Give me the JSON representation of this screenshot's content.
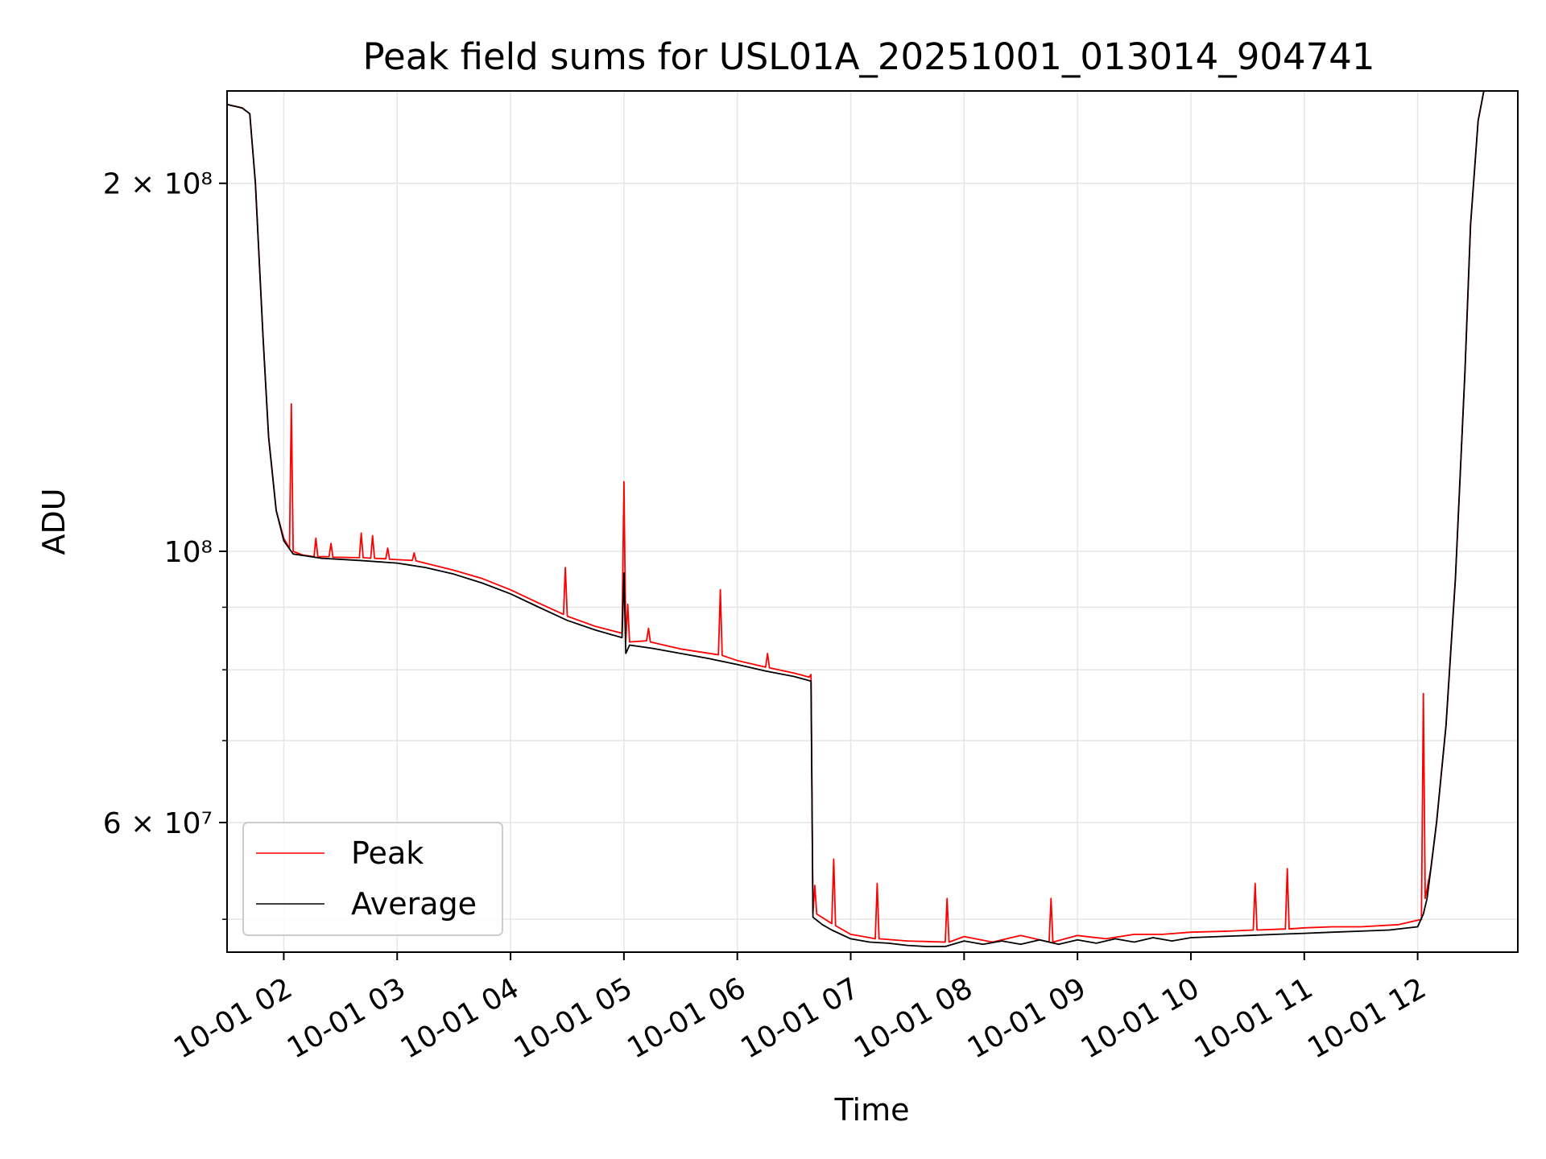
{
  "chart_data": {
    "type": "line",
    "title": "Peak field sums for USL01A_20251001_013014_904741",
    "xlabel": "Time",
    "ylabel": "ADU",
    "yscale": "log",
    "xlim": [
      "2025-10-01 01:30",
      "2025-10-01 12:53"
    ],
    "ylim": [
      47000000,
      238000000
    ],
    "grid": true,
    "legend": {
      "placement": "lower-left"
    },
    "x_ticks": [
      {
        "t": "2025-10-01 02:00",
        "label": "10-01 02"
      },
      {
        "t": "2025-10-01 03:00",
        "label": "10-01 03"
      },
      {
        "t": "2025-10-01 04:00",
        "label": "10-01 04"
      },
      {
        "t": "2025-10-01 05:00",
        "label": "10-01 05"
      },
      {
        "t": "2025-10-01 06:00",
        "label": "10-01 06"
      },
      {
        "t": "2025-10-01 07:00",
        "label": "10-01 07"
      },
      {
        "t": "2025-10-01 08:00",
        "label": "10-01 08"
      },
      {
        "t": "2025-10-01 09:00",
        "label": "10-01 09"
      },
      {
        "t": "2025-10-01 10:00",
        "label": "10-01 10"
      },
      {
        "t": "2025-10-01 11:00",
        "label": "10-01 11"
      },
      {
        "t": "2025-10-01 12:00",
        "label": "10-01 12"
      }
    ],
    "y_major_ticks": [
      {
        "value": 60000000,
        "label": "6 × 10⁷"
      },
      {
        "value": 100000000,
        "label": "10⁸"
      },
      {
        "value": 200000000,
        "label": "2 × 10⁸"
      }
    ],
    "y_minor_ticks": [
      50000000,
      70000000,
      80000000,
      90000000
    ],
    "series": [
      {
        "name": "Peak",
        "color": "#ff0000",
        "points": [
          [
            "2025-10-01 01:30",
            232000000
          ],
          [
            "2025-10-01 01:38",
            230500000
          ],
          [
            "2025-10-01 01:42",
            228000000
          ],
          [
            "2025-10-01 01:45",
            200000000
          ],
          [
            "2025-10-01 01:49",
            150000000
          ],
          [
            "2025-10-01 01:52",
            124000000
          ],
          [
            "2025-10-01 01:56",
            108000000
          ],
          [
            "2025-10-01 02:00",
            102500000
          ],
          [
            "2025-10-01 02:03",
            100500000
          ],
          [
            "2025-10-01 02:04",
            132000000
          ],
          [
            "2025-10-01 02:05",
            100000000
          ],
          [
            "2025-10-01 02:10",
            99300000
          ],
          [
            "2025-10-01 02:16",
            99000000
          ],
          [
            "2025-10-01 02:17",
            102500000
          ],
          [
            "2025-10-01 02:18",
            99000000
          ],
          [
            "2025-10-01 02:24",
            99000000
          ],
          [
            "2025-10-01 02:25",
            101500000
          ],
          [
            "2025-10-01 02:26",
            98900000
          ],
          [
            "2025-10-01 02:40",
            98800000
          ],
          [
            "2025-10-01 02:41",
            103500000
          ],
          [
            "2025-10-01 02:42",
            98800000
          ],
          [
            "2025-10-01 02:46",
            98700000
          ],
          [
            "2025-10-01 02:47",
            103000000
          ],
          [
            "2025-10-01 02:48",
            98700000
          ],
          [
            "2025-10-01 02:54",
            98600000
          ],
          [
            "2025-10-01 02:55",
            100600000
          ],
          [
            "2025-10-01 02:56",
            98500000
          ],
          [
            "2025-10-01 03:08",
            98300000
          ],
          [
            "2025-10-01 03:09",
            99700000
          ],
          [
            "2025-10-01 03:10",
            98200000
          ],
          [
            "2025-10-01 03:30",
            96500000
          ],
          [
            "2025-10-01 03:45",
            95000000
          ],
          [
            "2025-10-01 04:00",
            93000000
          ],
          [
            "2025-10-01 04:15",
            90700000
          ],
          [
            "2025-10-01 04:28",
            88800000
          ],
          [
            "2025-10-01 04:29",
            97000000
          ],
          [
            "2025-10-01 04:30",
            88500000
          ],
          [
            "2025-10-01 04:45",
            86800000
          ],
          [
            "2025-10-01 04:59",
            85700000
          ],
          [
            "2025-10-01 05:00",
            114000000
          ],
          [
            "2025-10-01 05:01",
            84500000
          ],
          [
            "2025-10-01 05:02",
            90500000
          ],
          [
            "2025-10-01 05:03",
            84300000
          ],
          [
            "2025-10-01 05:12",
            84500000
          ],
          [
            "2025-10-01 05:13",
            86500000
          ],
          [
            "2025-10-01 05:14",
            84300000
          ],
          [
            "2025-10-01 05:30",
            83200000
          ],
          [
            "2025-10-01 05:50",
            82300000
          ],
          [
            "2025-10-01 05:51",
            93000000
          ],
          [
            "2025-10-01 05:52",
            82200000
          ],
          [
            "2025-10-01 06:00",
            81400000
          ],
          [
            "2025-10-01 06:15",
            80400000
          ],
          [
            "2025-10-01 06:16",
            82500000
          ],
          [
            "2025-10-01 06:17",
            80300000
          ],
          [
            "2025-10-01 06:30",
            79500000
          ],
          [
            "2025-10-01 06:38",
            78900000
          ],
          [
            "2025-10-01 06:39",
            79300000
          ],
          [
            "2025-10-01 06:40",
            50600000
          ],
          [
            "2025-10-01 06:41",
            53300000
          ],
          [
            "2025-10-01 06:42",
            50500000
          ],
          [
            "2025-10-01 06:50",
            49600000
          ],
          [
            "2025-10-01 06:51",
            56000000
          ],
          [
            "2025-10-01 06:52",
            49400000
          ],
          [
            "2025-10-01 07:00",
            48600000
          ],
          [
            "2025-10-01 07:10",
            48300000
          ],
          [
            "2025-10-01 07:13",
            48200000
          ],
          [
            "2025-10-01 07:14",
            53500000
          ],
          [
            "2025-10-01 07:15",
            48200000
          ],
          [
            "2025-10-01 07:30",
            48000000
          ],
          [
            "2025-10-01 07:50",
            47900000
          ],
          [
            "2025-10-01 07:51",
            52000000
          ],
          [
            "2025-10-01 07:52",
            47900000
          ],
          [
            "2025-10-01 08:00",
            48400000
          ],
          [
            "2025-10-01 08:15",
            47900000
          ],
          [
            "2025-10-01 08:30",
            48500000
          ],
          [
            "2025-10-01 08:45",
            47900000
          ],
          [
            "2025-10-01 08:46",
            52000000
          ],
          [
            "2025-10-01 08:47",
            47900000
          ],
          [
            "2025-10-01 09:00",
            48500000
          ],
          [
            "2025-10-01 09:15",
            48200000
          ],
          [
            "2025-10-01 09:30",
            48600000
          ],
          [
            "2025-10-01 09:45",
            48600000
          ],
          [
            "2025-10-01 10:00",
            48800000
          ],
          [
            "2025-10-01 10:20",
            48900000
          ],
          [
            "2025-10-01 10:33",
            49000000
          ],
          [
            "2025-10-01 10:34",
            53500000
          ],
          [
            "2025-10-01 10:35",
            49000000
          ],
          [
            "2025-10-01 10:50",
            49100000
          ],
          [
            "2025-10-01 10:51",
            55000000
          ],
          [
            "2025-10-01 10:52",
            49100000
          ],
          [
            "2025-10-01 11:00",
            49200000
          ],
          [
            "2025-10-01 11:15",
            49300000
          ],
          [
            "2025-10-01 11:30",
            49300000
          ],
          [
            "2025-10-01 11:50",
            49500000
          ],
          [
            "2025-10-01 12:02",
            50000000
          ],
          [
            "2025-10-01 12:03",
            76500000
          ],
          [
            "2025-10-01 12:04",
            52000000
          ],
          [
            "2025-10-01 12:07",
            55000000
          ],
          [
            "2025-10-01 12:10",
            60000000
          ],
          [
            "2025-10-01 12:15",
            72000000
          ],
          [
            "2025-10-01 12:20",
            95000000
          ],
          [
            "2025-10-01 12:25",
            140000000
          ],
          [
            "2025-10-01 12:28",
            185000000
          ],
          [
            "2025-10-01 12:32",
            225000000
          ],
          [
            "2025-10-01 12:35",
            238000000
          ],
          [
            "2025-10-01 12:53",
            238000000
          ]
        ]
      },
      {
        "name": "Average",
        "color": "#000000",
        "points": [
          [
            "2025-10-01 01:30",
            232000000
          ],
          [
            "2025-10-01 01:38",
            230500000
          ],
          [
            "2025-10-01 01:42",
            228000000
          ],
          [
            "2025-10-01 01:45",
            200000000
          ],
          [
            "2025-10-01 01:49",
            150000000
          ],
          [
            "2025-10-01 01:52",
            124000000
          ],
          [
            "2025-10-01 01:56",
            108000000
          ],
          [
            "2025-10-01 02:00",
            102000000
          ],
          [
            "2025-10-01 02:05",
            99500000
          ],
          [
            "2025-10-01 02:20",
            98700000
          ],
          [
            "2025-10-01 02:40",
            98300000
          ],
          [
            "2025-10-01 03:00",
            97800000
          ],
          [
            "2025-10-01 03:15",
            97000000
          ],
          [
            "2025-10-01 03:30",
            95800000
          ],
          [
            "2025-10-01 03:45",
            94200000
          ],
          [
            "2025-10-01 04:00",
            92300000
          ],
          [
            "2025-10-01 04:15",
            90000000
          ],
          [
            "2025-10-01 04:30",
            87800000
          ],
          [
            "2025-10-01 04:45",
            86200000
          ],
          [
            "2025-10-01 04:59",
            85000000
          ],
          [
            "2025-10-01 05:00",
            96000000
          ],
          [
            "2025-10-01 05:01",
            82500000
          ],
          [
            "2025-10-01 05:03",
            83800000
          ],
          [
            "2025-10-01 05:15",
            83300000
          ],
          [
            "2025-10-01 05:30",
            82500000
          ],
          [
            "2025-10-01 05:45",
            81700000
          ],
          [
            "2025-10-01 06:00",
            80800000
          ],
          [
            "2025-10-01 06:15",
            79800000
          ],
          [
            "2025-10-01 06:30",
            79000000
          ],
          [
            "2025-10-01 06:39",
            78300000
          ],
          [
            "2025-10-01 06:40",
            50200000
          ],
          [
            "2025-10-01 06:45",
            49500000
          ],
          [
            "2025-10-01 06:50",
            49000000
          ],
          [
            "2025-10-01 07:00",
            48200000
          ],
          [
            "2025-10-01 07:10",
            47900000
          ],
          [
            "2025-10-01 07:20",
            47800000
          ],
          [
            "2025-10-01 07:30",
            47600000
          ],
          [
            "2025-10-01 07:40",
            47500000
          ],
          [
            "2025-10-01 07:50",
            47500000
          ],
          [
            "2025-10-01 08:00",
            48000000
          ],
          [
            "2025-10-01 08:10",
            47700000
          ],
          [
            "2025-10-01 08:20",
            48000000
          ],
          [
            "2025-10-01 08:30",
            47700000
          ],
          [
            "2025-10-01 08:40",
            48100000
          ],
          [
            "2025-10-01 08:50",
            47700000
          ],
          [
            "2025-10-01 09:00",
            48100000
          ],
          [
            "2025-10-01 09:10",
            47800000
          ],
          [
            "2025-10-01 09:20",
            48200000
          ],
          [
            "2025-10-01 09:30",
            47900000
          ],
          [
            "2025-10-01 09:40",
            48300000
          ],
          [
            "2025-10-01 09:50",
            48000000
          ],
          [
            "2025-10-01 10:00",
            48300000
          ],
          [
            "2025-10-01 10:15",
            48400000
          ],
          [
            "2025-10-01 10:30",
            48500000
          ],
          [
            "2025-10-01 10:45",
            48600000
          ],
          [
            "2025-10-01 11:00",
            48700000
          ],
          [
            "2025-10-01 11:15",
            48800000
          ],
          [
            "2025-10-01 11:30",
            48900000
          ],
          [
            "2025-10-01 11:45",
            49000000
          ],
          [
            "2025-10-01 12:00",
            49300000
          ],
          [
            "2025-10-01 12:03",
            50500000
          ],
          [
            "2025-10-01 12:05",
            52000000
          ],
          [
            "2025-10-01 12:07",
            55000000
          ],
          [
            "2025-10-01 12:10",
            60000000
          ],
          [
            "2025-10-01 12:15",
            72000000
          ],
          [
            "2025-10-01 12:20",
            95000000
          ],
          [
            "2025-10-01 12:25",
            140000000
          ],
          [
            "2025-10-01 12:28",
            185000000
          ],
          [
            "2025-10-01 12:32",
            225000000
          ],
          [
            "2025-10-01 12:35",
            238000000
          ],
          [
            "2025-10-01 12:53",
            238000000
          ]
        ]
      }
    ]
  }
}
